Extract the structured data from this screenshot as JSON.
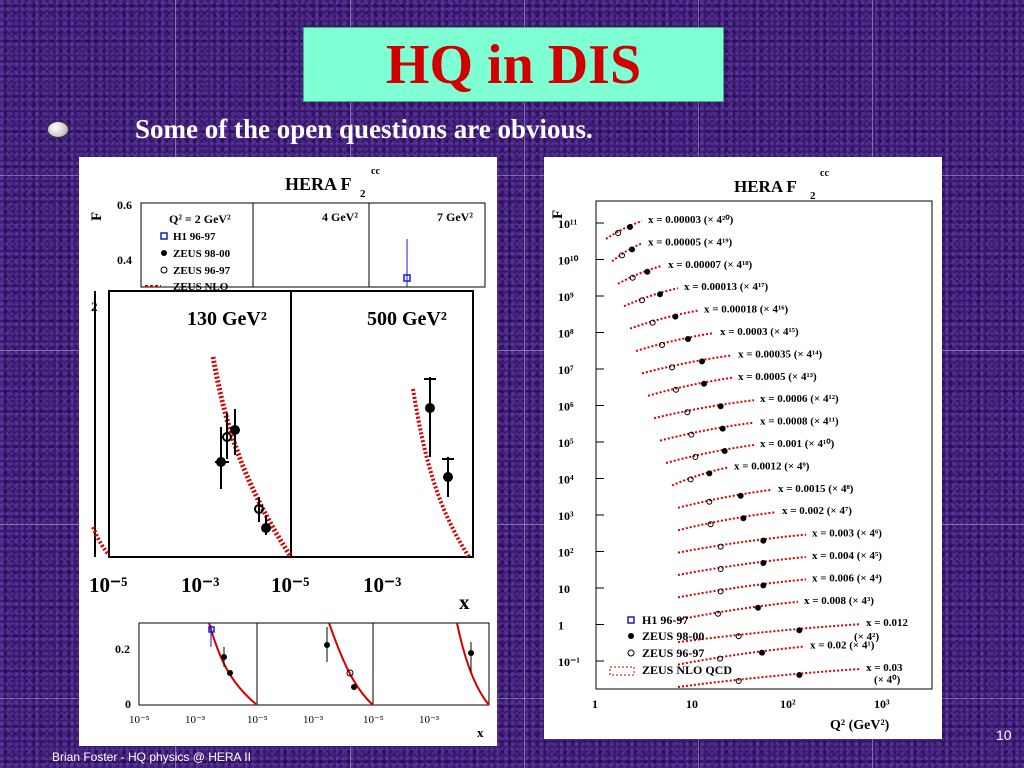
{
  "slide": {
    "title": "HQ in DIS",
    "bullet_text": "Some of the open questions are obvious.",
    "footer": "Brian Foster - HQ physics @ HERA II",
    "page_number": "10"
  },
  "left_figure": {
    "title": "HERA F",
    "title_sub": "2",
    "title_sup": "cc",
    "yaxis_label": "F",
    "top_panels": {
      "labels": [
        "Q² = 2 GeV²",
        "4 GeV²",
        "7 GeV²"
      ],
      "y_ticks": [
        "0.6",
        "0.4"
      ],
      "legend": [
        "H1 96-97",
        "ZEUS 98-00",
        "ZEUS 96-97",
        "ZEUS NLO"
      ]
    },
    "zoom_panels": {
      "labels": [
        "130 GeV²",
        "500 GeV²"
      ],
      "y_tick": "2",
      "x_ticks": [
        "10⁻⁵",
        "10⁻³",
        "10⁻⁵",
        "10⁻³"
      ],
      "x_label": "x"
    },
    "bottom_panels": {
      "y_ticks": [
        "0.2",
        "0"
      ],
      "x_ticks": [
        "10⁻⁵",
        "10⁻³",
        "10⁻⁵",
        "10⁻³",
        "10⁻⁵",
        "10⁻³"
      ],
      "x_label": "x"
    }
  },
  "right_figure": {
    "title": "HERA F",
    "title_sub": "2",
    "title_sup": "cc",
    "yaxis_label": "F",
    "xaxis_label": "Q² (GeV²)",
    "y_ticks": [
      "10¹¹",
      "10¹⁰",
      "10⁹",
      "10⁸",
      "10⁷",
      "10⁶",
      "10⁵",
      "10⁴",
      "10³",
      "10²",
      "10",
      "1",
      "10⁻¹"
    ],
    "x_ticks": [
      "1",
      "10",
      "10²",
      "10³"
    ],
    "series_labels": [
      "x = 0.00003 (× 4²⁰)",
      "x = 0.00005 (× 4¹⁹)",
      "x = 0.00007 (× 4¹⁸)",
      "x = 0.00013 (× 4¹⁷)",
      "x = 0.00018 (× 4¹⁶)",
      "x = 0.0003 (× 4¹⁵)",
      "x = 0.00035 (× 4¹⁴)",
      "x = 0.0005 (× 4¹³)",
      "x = 0.0006 (× 4¹²)",
      "x = 0.0008 (× 4¹¹)",
      "x = 0.001 (× 4¹⁰)",
      "x = 0.0012 (× 4⁹)",
      "x = 0.0015 (× 4⁸)",
      "x = 0.002 (× 4⁷)",
      "x = 0.003 (× 4⁶)",
      "x = 0.004 (× 4⁵)",
      "x = 0.006 (× 4⁴)",
      "x = 0.008 (× 4³)",
      "x = 0.012",
      "x = 0.02 (× 4¹)",
      "x = 0.03"
    ],
    "extra_factor_labels": [
      "(× 4²)",
      "(× 4⁰)"
    ],
    "legend": [
      "H1 96-97",
      "ZEUS 98-00",
      "ZEUS 96-97",
      "ZEUS NLO QCD"
    ]
  },
  "colors": {
    "title_bg": "#7fffd4",
    "title_text": "#d00000",
    "nlo_curve": "#d40000",
    "h1_marker": "#1a1acc"
  }
}
